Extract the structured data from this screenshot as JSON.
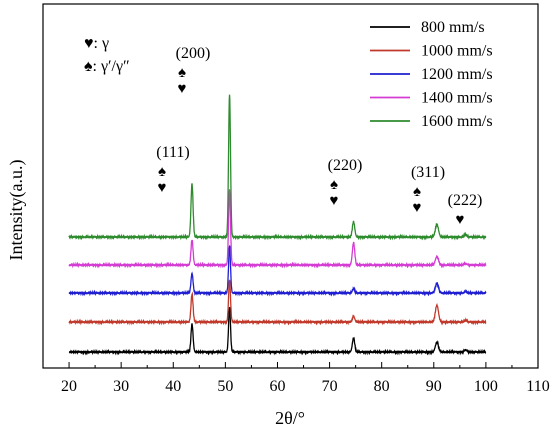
{
  "chart_data": {
    "type": "line",
    "title": "",
    "xlabel": "2θ/°",
    "ylabel": "Intensity(a.u.)",
    "xlim": [
      15,
      110
    ],
    "xticks": [
      "20",
      "30",
      "40",
      "50",
      "60",
      "70",
      "80",
      "90",
      "100",
      "110"
    ],
    "yticks_shown": false,
    "stack_order": "bottom-to-top",
    "legend_position": "top-right",
    "series": [
      {
        "name": "800 mm/s",
        "color": "#000000",
        "peaks": [
          {
            "x": 43.6,
            "h": 1.0
          },
          {
            "x": 50.8,
            "h": 1.6
          },
          {
            "x": 74.6,
            "h": 0.5
          },
          {
            "x": 90.6,
            "h": 0.35
          },
          {
            "x": 96.1,
            "h": 0.08
          }
        ]
      },
      {
        "name": "1000 mm/s",
        "color": "#c0392b",
        "peaks": [
          {
            "x": 43.6,
            "h": 1.0
          },
          {
            "x": 50.8,
            "h": 1.5
          },
          {
            "x": 74.6,
            "h": 0.2
          },
          {
            "x": 90.6,
            "h": 0.6
          },
          {
            "x": 96.1,
            "h": 0.06
          }
        ]
      },
      {
        "name": "1200 mm/s",
        "color": "#1f1fd1",
        "peaks": [
          {
            "x": 43.6,
            "h": 0.7
          },
          {
            "x": 50.8,
            "h": 1.7
          },
          {
            "x": 74.6,
            "h": 0.15
          },
          {
            "x": 90.6,
            "h": 0.35
          },
          {
            "x": 96.1,
            "h": 0.05
          }
        ]
      },
      {
        "name": "1400 mm/s",
        "color": "#d43cd4",
        "peaks": [
          {
            "x": 43.6,
            "h": 0.9
          },
          {
            "x": 50.8,
            "h": 2.7
          },
          {
            "x": 74.6,
            "h": 0.8
          },
          {
            "x": 90.6,
            "h": 0.3
          },
          {
            "x": 96.1,
            "h": 0.05
          }
        ]
      },
      {
        "name": "1600 mm/s",
        "color": "#2e8b2e",
        "peaks": [
          {
            "x": 43.6,
            "h": 1.9
          },
          {
            "x": 50.8,
            "h": 5.1
          },
          {
            "x": 74.6,
            "h": 0.55
          },
          {
            "x": 90.6,
            "h": 0.45
          },
          {
            "x": 96.1,
            "h": 0.08
          }
        ]
      }
    ],
    "peak_labels": [
      {
        "text": "(111)",
        "x": 43.6,
        "symbols": [
          "♠",
          "♥"
        ]
      },
      {
        "text": "(200)",
        "x": 50.8,
        "symbols": [
          "♠",
          "♥"
        ]
      },
      {
        "text": "(220)",
        "x": 74.6,
        "symbols": [
          "♠",
          "♥"
        ]
      },
      {
        "text": "(311)",
        "x": 90.6,
        "symbols": [
          "♠",
          "♥"
        ]
      },
      {
        "text": "(222)",
        "x": 96.1,
        "symbols": [
          "♥"
        ]
      }
    ],
    "phase_key": [
      {
        "symbol": "♥",
        "text": ": γ"
      },
      {
        "symbol": "♠",
        "text": ": γ′/γ″"
      }
    ]
  }
}
